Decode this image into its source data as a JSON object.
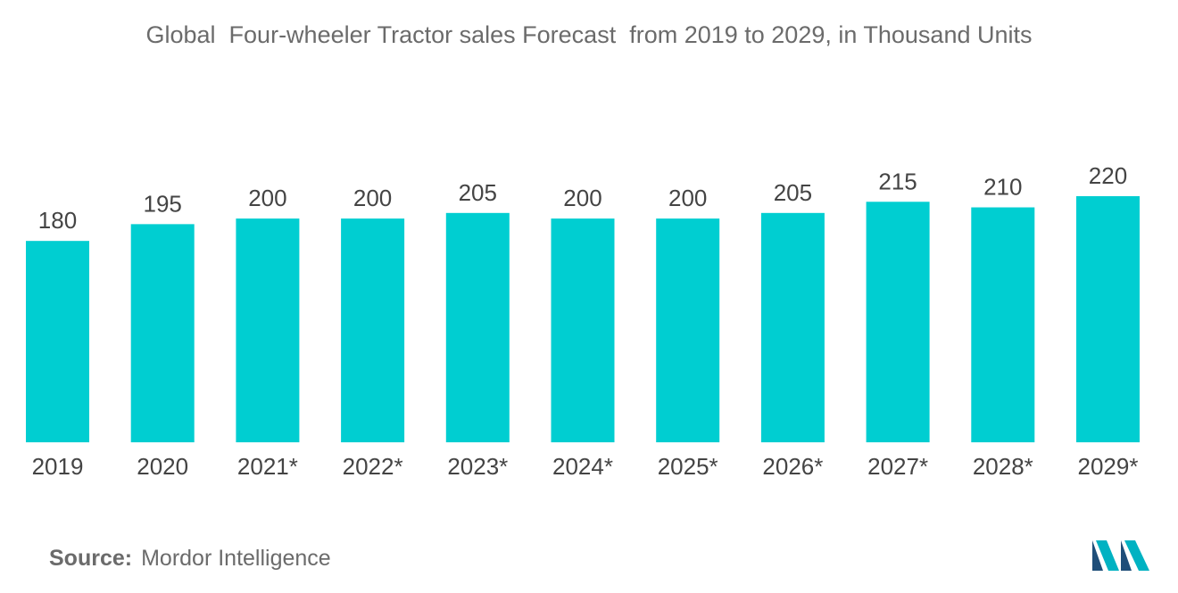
{
  "chart_data": {
    "type": "bar",
    "title": "Global  Four-wheeler Tractor sales Forecast  from 2019 to 2029, in Thousand Units",
    "categories": [
      "2019",
      "2020",
      "2021*",
      "2022*",
      "2023*",
      "2024*",
      "2025*",
      "2026*",
      "2027*",
      "2028*",
      "2029*"
    ],
    "values": [
      180,
      195,
      200,
      200,
      205,
      200,
      200,
      205,
      215,
      210,
      220
    ],
    "xlabel": "",
    "ylabel": "",
    "ylim": [
      0,
      220
    ],
    "grid": false,
    "legend": "none",
    "bar_color": "#00CED1"
  },
  "source": {
    "label": "Source:",
    "text": "Mordor Intelligence"
  },
  "logo": {
    "icon": "mordor-intelligence-logo-icon",
    "colors": [
      "#1F4E79",
      "#00B2C2"
    ]
  }
}
